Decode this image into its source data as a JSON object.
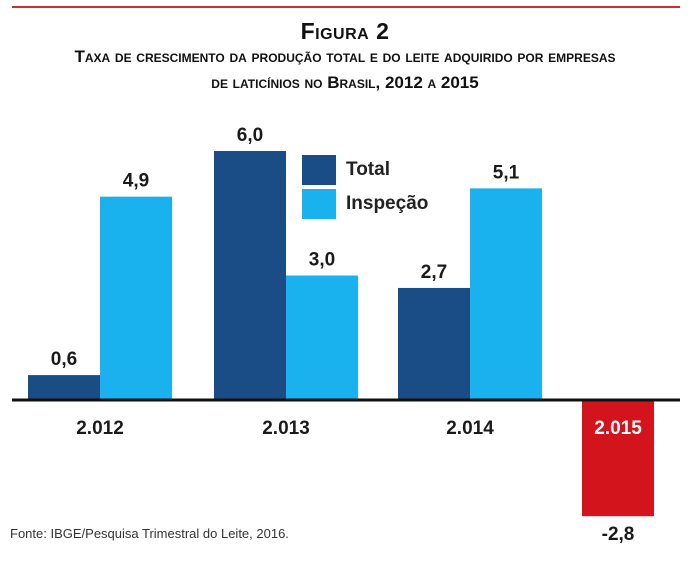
{
  "header": {
    "figure_label": "Figura 2",
    "title_line1": "Taxa de crescimento da produção total e do leite adquirido por empresas",
    "title_line2": "de laticínios no Brasil, 2012 a 2015"
  },
  "chart_data": {
    "type": "bar",
    "categories": [
      "2.012",
      "2.013",
      "2.014",
      "2.015"
    ],
    "series": [
      {
        "name": "Total",
        "values": [
          0.6,
          6.0,
          2.7,
          -2.8
        ],
        "labels": [
          "0,6",
          "6,0",
          "2,7",
          "-2,8"
        ]
      },
      {
        "name": "Inspeção",
        "values": [
          4.9,
          3.0,
          5.1,
          null
        ],
        "labels": [
          "4,9",
          "3,0",
          "5,1",
          ""
        ]
      }
    ],
    "ylim": [
      -3,
      6.3
    ],
    "grid": false,
    "legend": "top-center",
    "highlight_category": "2.015"
  },
  "colors": {
    "total": "#1a4c86",
    "inspecao": "#19b2ee",
    "negative": "#d3141c",
    "accent_line": "#d92a2a"
  },
  "source": "Fonte: IBGE/Pesquisa Trimestral do Leite, 2016."
}
